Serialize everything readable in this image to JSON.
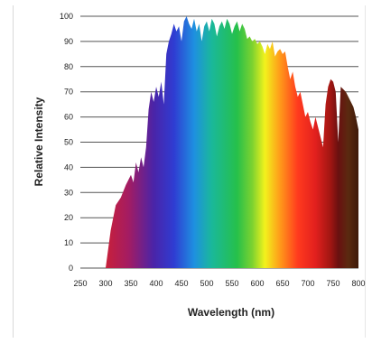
{
  "chart_data": {
    "type": "area",
    "title": "",
    "xlabel": "Wavelength (nm)",
    "ylabel": "Relative Intensity",
    "xlim": [
      250,
      800
    ],
    "ylim": [
      0,
      100
    ],
    "x_ticks": [
      "250",
      "300",
      "350",
      "400",
      "450",
      "500",
      "550",
      "600",
      "650",
      "700",
      "750",
      "800"
    ],
    "y_ticks": [
      "0",
      "10",
      "20",
      "30",
      "40",
      "50",
      "60",
      "70",
      "80",
      "90",
      "100"
    ],
    "grid": "horizontal",
    "legend": "none",
    "fill": "visible-spectrum color gradient",
    "series": [
      {
        "x": [
          300,
          310,
          320,
          330,
          340,
          350,
          355,
          360,
          365,
          370,
          375,
          380,
          385,
          390,
          395,
          400,
          405,
          410,
          415,
          420,
          425,
          430,
          435,
          440,
          445,
          450,
          455,
          460,
          465,
          470,
          475,
          480,
          485,
          490,
          495,
          500,
          505,
          510,
          515,
          520,
          525,
          530,
          535,
          540,
          545,
          550,
          555,
          560,
          565,
          570,
          575,
          580,
          585,
          590,
          595,
          600,
          605,
          610,
          615,
          620,
          625,
          630,
          635,
          640,
          645,
          650,
          655,
          660,
          665,
          670,
          675,
          680,
          685,
          690,
          695,
          700,
          705,
          710,
          715,
          720,
          725,
          730,
          735,
          740,
          745,
          750,
          755,
          760,
          765,
          770,
          775,
          780,
          785,
          790,
          795,
          800
        ],
        "y": [
          0,
          15,
          25,
          28,
          33,
          37,
          34,
          42,
          38,
          44,
          40,
          48,
          63,
          70,
          66,
          72,
          68,
          74,
          65,
          85,
          90,
          93,
          97,
          94,
          96,
          90,
          98,
          100,
          97,
          95,
          99,
          94,
          97,
          90,
          96,
          98,
          94,
          99,
          97,
          92,
          96,
          98,
          95,
          99,
          97,
          93,
          96,
          98,
          94,
          97,
          95,
          91,
          92,
          90,
          91,
          89,
          90,
          88,
          85,
          89,
          87,
          90,
          84,
          86,
          87,
          85,
          86,
          80,
          75,
          78,
          72,
          68,
          70,
          65,
          60,
          62,
          58,
          55,
          60,
          56,
          52,
          48,
          65,
          72,
          75,
          74,
          70,
          50,
          72,
          71,
          70,
          68,
          66,
          64,
          60,
          55
        ]
      }
    ]
  }
}
